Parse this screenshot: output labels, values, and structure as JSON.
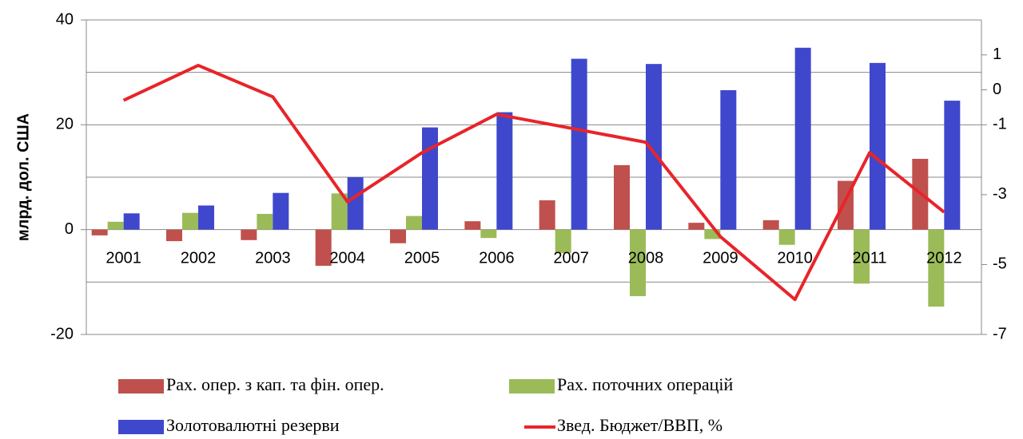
{
  "chart_data": {
    "type": "bar",
    "y_label": "млрд. дол. США",
    "categories": [
      "2001",
      "2002",
      "2003",
      "2004",
      "2005",
      "2006",
      "2007",
      "2008",
      "2009",
      "2010",
      "2011",
      "2012"
    ],
    "series": [
      {
        "name": "Рах. опер. з кап. та фін. опер.",
        "color": "#c0504d",
        "type": "bar",
        "values": [
          -1.1,
          -2.2,
          -2,
          -6.9,
          -2.6,
          1.6,
          5.6,
          12.3,
          1.3,
          1.8,
          9.3,
          13.5
        ]
      },
      {
        "name": "Рах. поточних операцій",
        "color": "#9bbb59",
        "type": "bar",
        "values": [
          1.5,
          3.2,
          3,
          6.9,
          2.6,
          -1.6,
          -4.5,
          -12.7,
          -1.8,
          -2.9,
          -10.3,
          -14.7
        ]
      },
      {
        "name": "Золотовалютні резерви",
        "color": "#3f48cc",
        "type": "bar",
        "values": [
          3.1,
          4.6,
          7,
          10,
          19.5,
          22.4,
          32.6,
          31.6,
          26.6,
          34.7,
          31.8,
          24.6
        ]
      },
      {
        "name": "Звед. Бюджет/ВВП, %",
        "color": "#e8242a",
        "type": "line",
        "axis": "y2",
        "values": [
          -0.3,
          0.7,
          -0.2,
          -3.2,
          -1.8,
          -0.7,
          -1.1,
          -1.5,
          -4.2,
          -6.0,
          -1.8,
          -3.5
        ]
      }
    ],
    "ylim": [
      -20,
      40
    ],
    "yticks": [
      -20,
      0,
      20,
      40
    ],
    "ygrid": [
      -20,
      -10,
      0,
      10,
      20,
      30,
      40
    ],
    "y2lim": [
      -7,
      2
    ],
    "y2ticks": [
      -7,
      -5,
      -3,
      -1,
      0,
      1
    ],
    "grid": true
  }
}
